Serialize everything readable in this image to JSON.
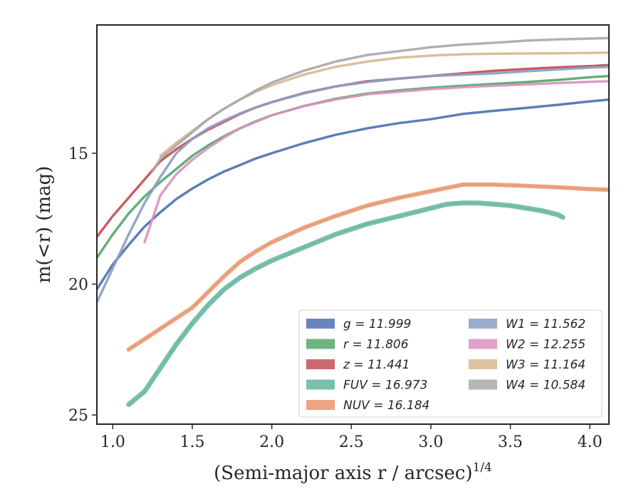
{
  "chart_data": {
    "type": "line",
    "title": "",
    "xlabel": "(Semi-major axis r / arcsec)",
    "xlabel_superscript": "1/4",
    "ylabel": "m(<r) (mag)",
    "xlim": [
      0.9,
      4.12
    ],
    "ylim": [
      25.35,
      10.1
    ],
    "y_inverted": true,
    "x_ticks": [
      1.0,
      1.5,
      2.0,
      2.5,
      3.0,
      3.5,
      4.0
    ],
    "x_tick_labels": [
      "1.0",
      "1.5",
      "2.0",
      "2.5",
      "3.0",
      "3.5",
      "4.0"
    ],
    "y_ticks": [
      15,
      20,
      25
    ],
    "y_tick_labels": [
      "15",
      "20",
      "25"
    ],
    "grid": false,
    "legend_position": "lower-right",
    "series": [
      {
        "name": "g = 11.999",
        "color": "#4c72b0",
        "x": [
          0.9,
          1.0,
          1.1,
          1.2,
          1.3,
          1.4,
          1.5,
          1.6,
          1.7,
          1.8,
          1.9,
          2.0,
          2.2,
          2.4,
          2.6,
          2.8,
          3.0,
          3.2,
          3.4,
          3.6,
          3.8,
          4.0,
          4.12
        ],
        "y": [
          20.2,
          19.25,
          18.5,
          17.8,
          17.25,
          16.75,
          16.35,
          16.0,
          15.7,
          15.45,
          15.2,
          15.0,
          14.62,
          14.3,
          14.05,
          13.85,
          13.7,
          13.5,
          13.38,
          13.27,
          13.15,
          13.02,
          12.95
        ]
      },
      {
        "name": "r = 11.806",
        "color": "#55a868",
        "x": [
          0.9,
          1.0,
          1.1,
          1.2,
          1.3,
          1.4,
          1.5,
          1.6,
          1.7,
          1.8,
          1.9,
          2.0,
          2.2,
          2.4,
          2.6,
          2.8,
          3.0,
          3.2,
          3.4,
          3.6,
          3.8,
          4.0,
          4.12
        ],
        "y": [
          19.0,
          18.1,
          17.3,
          16.65,
          16.1,
          15.6,
          15.1,
          14.7,
          14.35,
          14.05,
          13.78,
          13.55,
          13.2,
          12.92,
          12.72,
          12.6,
          12.5,
          12.42,
          12.35,
          12.28,
          12.2,
          12.1,
          12.05
        ]
      },
      {
        "name": "z = 11.441",
        "color": "#c44e52",
        "x": [
          0.9,
          1.0,
          1.1,
          1.2,
          1.3,
          1.4,
          1.5,
          1.6,
          1.7,
          1.8,
          1.9,
          2.0,
          2.2,
          2.4,
          2.6,
          2.8,
          3.0,
          3.2,
          3.4,
          3.6,
          3.8,
          4.0,
          4.12
        ],
        "y": [
          18.2,
          17.4,
          16.7,
          16.0,
          15.3,
          14.85,
          14.45,
          14.1,
          13.8,
          13.5,
          13.25,
          13.05,
          12.7,
          12.45,
          12.25,
          12.15,
          12.05,
          11.95,
          11.85,
          11.78,
          11.72,
          11.67,
          11.63
        ]
      },
      {
        "name": "FUV = 16.973",
        "color": "#64b5a0",
        "x": [
          1.1,
          1.2,
          1.3,
          1.4,
          1.5,
          1.6,
          1.7,
          1.8,
          1.9,
          2.0,
          2.1,
          2.2,
          2.3,
          2.4,
          2.5,
          2.6,
          2.7,
          2.8,
          2.9,
          3.0,
          3.1,
          3.2,
          3.3,
          3.4,
          3.5,
          3.6,
          3.7,
          3.8,
          3.83
        ],
        "y": [
          24.6,
          24.1,
          23.2,
          22.3,
          21.5,
          20.8,
          20.2,
          19.75,
          19.4,
          19.1,
          18.85,
          18.6,
          18.35,
          18.1,
          17.9,
          17.7,
          17.55,
          17.4,
          17.25,
          17.1,
          16.95,
          16.9,
          16.9,
          16.95,
          17.0,
          17.1,
          17.2,
          17.35,
          17.45
        ]
      },
      {
        "name": "NUV = 16.184",
        "color": "#e8956d",
        "x": [
          1.1,
          1.2,
          1.3,
          1.4,
          1.5,
          1.6,
          1.7,
          1.8,
          1.9,
          2.0,
          2.2,
          2.4,
          2.6,
          2.8,
          3.0,
          3.2,
          3.4,
          3.6,
          3.8,
          4.0,
          4.12
        ],
        "y": [
          22.5,
          22.1,
          21.7,
          21.3,
          20.9,
          20.3,
          19.7,
          19.15,
          18.75,
          18.4,
          17.85,
          17.4,
          17.0,
          16.7,
          16.45,
          16.2,
          16.2,
          16.25,
          16.3,
          16.37,
          16.4
        ]
      },
      {
        "name": "W1 = 11.562",
        "color": "#8c9dc4",
        "x": [
          0.9,
          1.0,
          1.1,
          1.2,
          1.3,
          1.4,
          1.5,
          1.6,
          1.7,
          1.8,
          1.9,
          2.0,
          2.2,
          2.4,
          2.6,
          2.8,
          3.0,
          3.2,
          3.4,
          3.6,
          3.8,
          4.0,
          4.12
        ],
        "y": [
          20.7,
          19.4,
          18.1,
          16.9,
          15.9,
          15.0,
          14.45,
          14.05,
          13.75,
          13.48,
          13.25,
          13.05,
          12.72,
          12.45,
          12.28,
          12.15,
          12.05,
          12.0,
          11.95,
          11.87,
          11.8,
          11.73,
          11.7
        ]
      },
      {
        "name": "W2 = 12.255",
        "color": "#dd8fc0",
        "x": [
          1.2,
          1.25,
          1.3,
          1.4,
          1.5,
          1.6,
          1.7,
          1.8,
          1.9,
          2.0,
          2.2,
          2.4,
          2.6,
          2.8,
          3.0,
          3.2,
          3.4,
          3.6,
          3.8,
          4.0,
          4.12
        ],
        "y": [
          18.4,
          17.5,
          16.6,
          15.8,
          15.25,
          14.8,
          14.4,
          14.05,
          13.8,
          13.55,
          13.2,
          12.95,
          12.75,
          12.65,
          12.55,
          12.48,
          12.42,
          12.37,
          12.32,
          12.27,
          12.25
        ]
      },
      {
        "name": "W3 = 11.164",
        "color": "#d8b890",
        "x": [
          1.3,
          1.4,
          1.5,
          1.6,
          1.7,
          1.8,
          1.9,
          2.0,
          2.2,
          2.4,
          2.6,
          2.8,
          3.0,
          3.2,
          3.4,
          3.6,
          3.8,
          4.0,
          4.12
        ],
        "y": [
          15.1,
          14.6,
          14.15,
          13.7,
          13.3,
          12.95,
          12.65,
          12.4,
          12.0,
          11.7,
          11.5,
          11.35,
          11.27,
          11.22,
          11.2,
          11.19,
          11.18,
          11.17,
          11.16
        ]
      },
      {
        "name": "W4 = 10.584",
        "color": "#a9a9a9",
        "x": [
          1.25,
          1.3,
          1.4,
          1.5,
          1.6,
          1.7,
          1.8,
          1.9,
          2.0,
          2.2,
          2.4,
          2.6,
          2.8,
          3.0,
          3.2,
          3.4,
          3.6,
          3.8,
          4.0,
          4.12
        ],
        "y": [
          15.7,
          15.2,
          14.7,
          14.2,
          13.7,
          13.3,
          12.95,
          12.6,
          12.3,
          11.85,
          11.5,
          11.25,
          11.1,
          10.95,
          10.85,
          10.78,
          10.7,
          10.65,
          10.62,
          10.6
        ]
      }
    ]
  }
}
